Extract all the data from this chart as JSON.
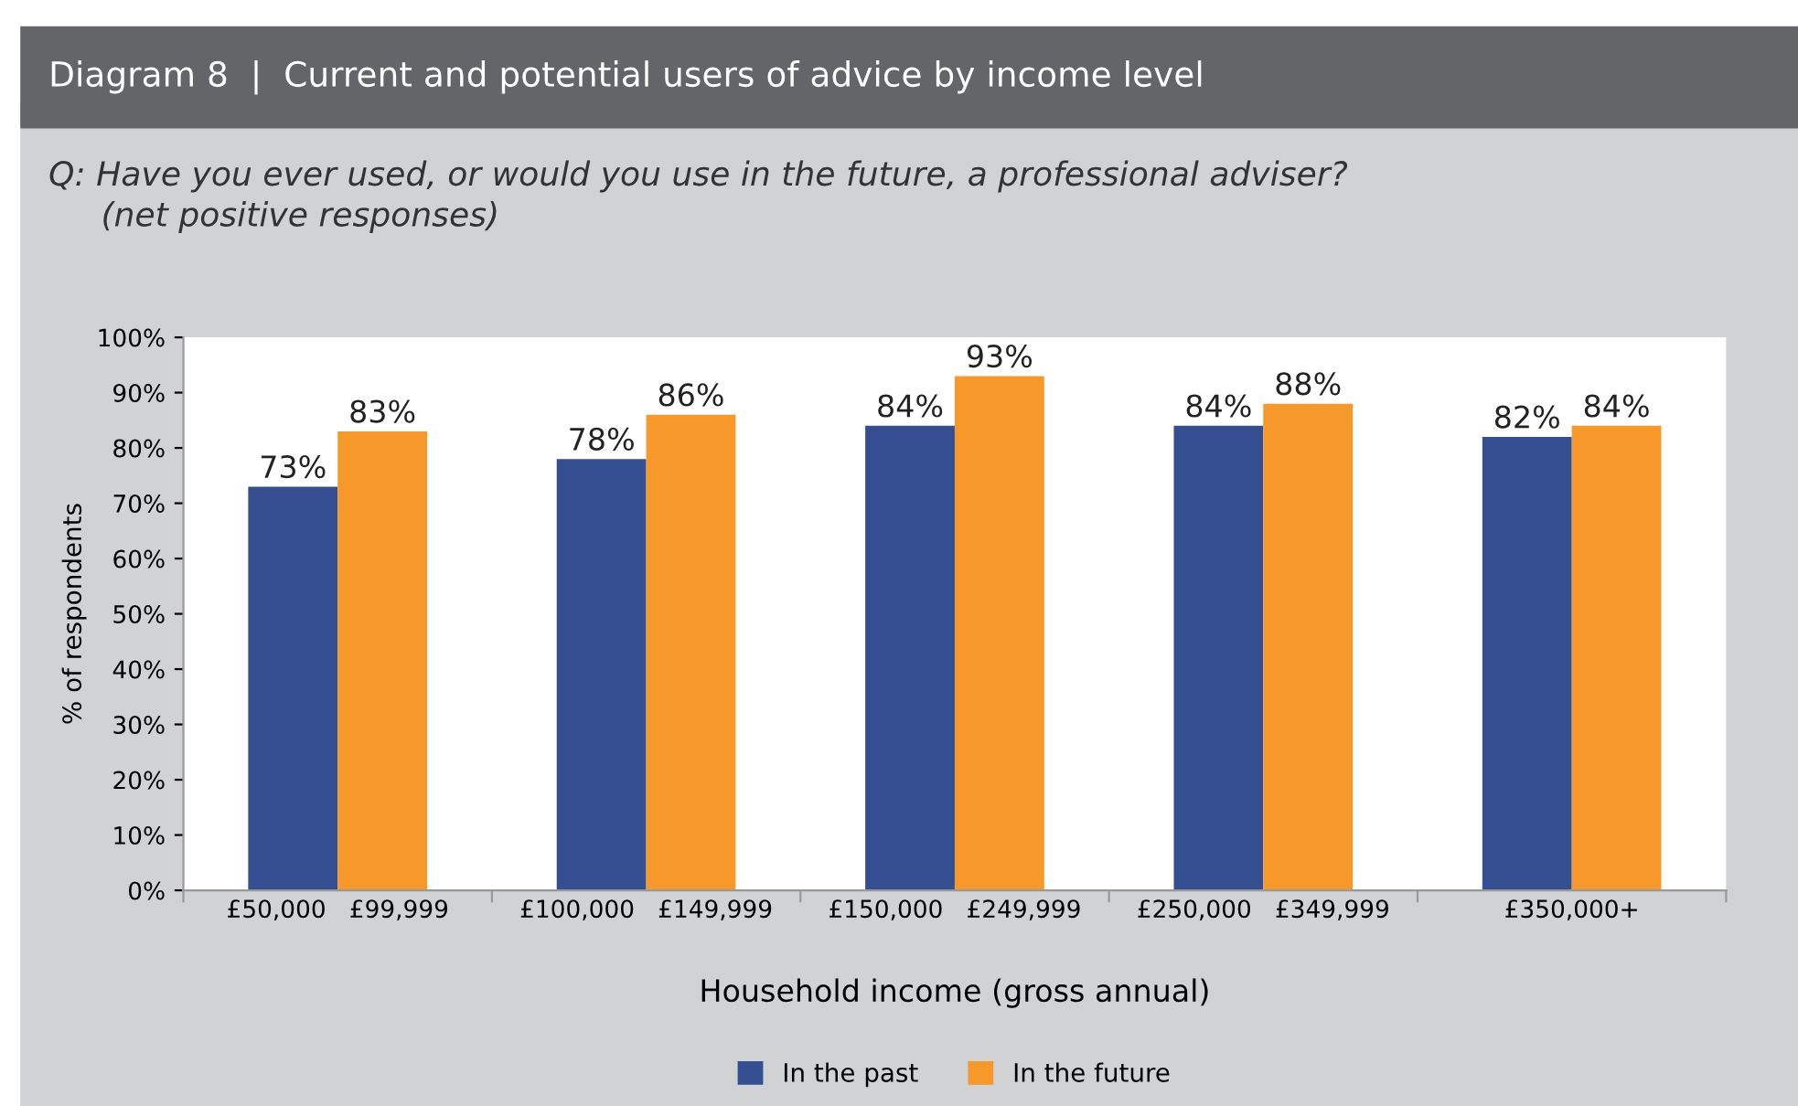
{
  "chart_data": {
    "type": "bar",
    "title": "Diagram 8  |  Current and potential users of advice by income level",
    "subtitle": "Q: Have you ever used, or would you use in the future, a professional adviser?\n     (net positive responses)",
    "xlabel": "Household income (gross annual)",
    "ylabel": "% of respondents",
    "categories": [
      "£50,000   £99,999",
      "£100,000   £149,999",
      "£150,000   £249,999",
      "£250,000   £349,999",
      "£350,000+"
    ],
    "series": [
      {
        "name": "In the past",
        "color": "#344e91",
        "values": [
          73,
          78,
          84,
          84,
          82
        ],
        "value_labels": [
          "73%",
          "78%",
          "84%",
          "84%",
          "82%"
        ]
      },
      {
        "name": "In the future",
        "color": "#f7982a",
        "values": [
          83,
          86,
          93,
          88,
          84
        ],
        "value_labels": [
          "83%",
          "86%",
          "93%",
          "88%",
          "84%"
        ]
      }
    ],
    "ylim": [
      0,
      100
    ],
    "yticks": [
      {
        "value": 0,
        "label": "0%"
      },
      {
        "value": 10,
        "label": "10%"
      },
      {
        "value": 20,
        "label": "20%"
      },
      {
        "value": 30,
        "label": "30%"
      },
      {
        "value": 40,
        "label": "40%"
      },
      {
        "value": 50,
        "label": "50%"
      },
      {
        "value": 60,
        "label": "60%"
      },
      {
        "value": 70,
        "label": "70%"
      },
      {
        "value": 80,
        "label": "80%"
      },
      {
        "value": 90,
        "label": "90%"
      },
      {
        "value": 100,
        "label": "100%"
      }
    ],
    "grid": false,
    "legend": "bottom"
  }
}
